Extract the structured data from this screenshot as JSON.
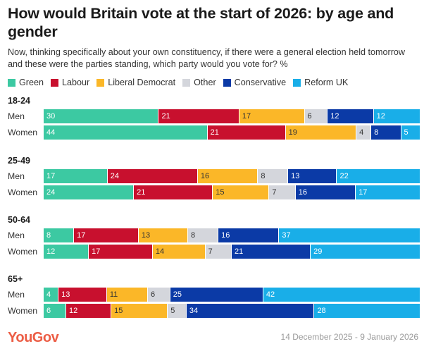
{
  "title": "How would Britain vote at the start of 2026: by age and gender",
  "subtitle": "Now, thinking specifically about your own constituency, if there were a general election held tomorrow and these were the parties standing, which party would you vote for? %",
  "footer": {
    "logo": "YouGov",
    "date": "14 December 2025 - 9 January 2026"
  },
  "colors": {
    "logo": "#ec5d45"
  },
  "chart_data": {
    "type": "bar",
    "orientation": "horizontal",
    "stacked": true,
    "series": [
      {
        "name": "Green",
        "color": "#3cc9a2",
        "text": "dark"
      },
      {
        "name": "Labour",
        "color": "#c8102e",
        "text": "dark"
      },
      {
        "name": "Liberal Democrat",
        "color": "#fbb728",
        "text": "light"
      },
      {
        "name": "Other",
        "color": "#d4d6dc",
        "text": "light"
      },
      {
        "name": "Conservative",
        "color": "#0b3aa6",
        "text": "dark"
      },
      {
        "name": "Reform UK",
        "color": "#19aee8",
        "text": "dark"
      }
    ],
    "groups": [
      {
        "label": "18-24",
        "rows": [
          {
            "label": "Men",
            "values": [
              30,
              21,
              17,
              6,
              12,
              12
            ]
          },
          {
            "label": "Women",
            "values": [
              44,
              21,
              19,
              4,
              8,
              5
            ]
          }
        ]
      },
      {
        "label": "25-49",
        "rows": [
          {
            "label": "Men",
            "values": [
              17,
              24,
              16,
              8,
              13,
              22
            ]
          },
          {
            "label": "Women",
            "values": [
              24,
              21,
              15,
              7,
              16,
              17
            ]
          }
        ]
      },
      {
        "label": "50-64",
        "rows": [
          {
            "label": "Men",
            "values": [
              8,
              17,
              13,
              8,
              16,
              37
            ]
          },
          {
            "label": "Women",
            "values": [
              12,
              17,
              14,
              7,
              21,
              29
            ]
          }
        ]
      },
      {
        "label": "65+",
        "rows": [
          {
            "label": "Men",
            "values": [
              4,
              13,
              11,
              6,
              25,
              42
            ]
          },
          {
            "label": "Women",
            "values": [
              6,
              12,
              15,
              5,
              34,
              28
            ]
          }
        ]
      }
    ]
  }
}
